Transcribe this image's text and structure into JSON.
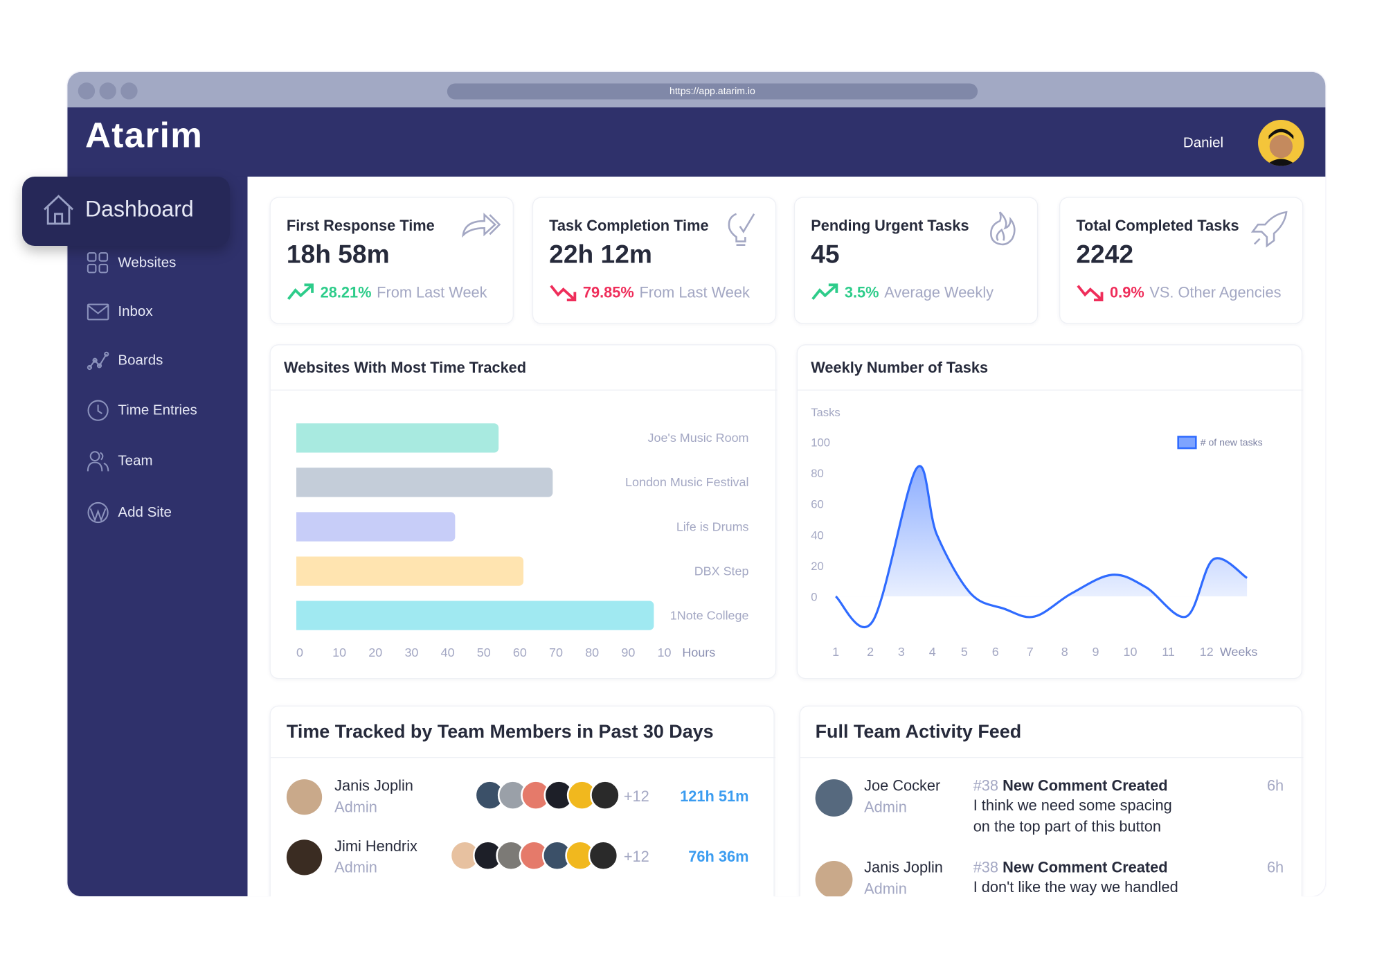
{
  "browser": {
    "url": "https://app.atarim.io"
  },
  "header": {
    "logo": "Atarim",
    "user_name": "Daniel"
  },
  "sidebar": {
    "active": "Dashboard",
    "items": [
      {
        "label": "Websites",
        "icon": "grid-icon"
      },
      {
        "label": "Inbox",
        "icon": "mail-icon"
      },
      {
        "label": "Boards",
        "icon": "graph-icon"
      },
      {
        "label": "Time Entries",
        "icon": "clock-icon"
      },
      {
        "label": "Team",
        "icon": "users-icon"
      },
      {
        "label": "Add Site",
        "icon": "wordpress-icon"
      }
    ]
  },
  "kpis": [
    {
      "title": "First Response Time",
      "value": "18h 58m",
      "delta": "28.21%",
      "trend": "up",
      "note": "From Last Week",
      "icon": "forward-arrow-icon"
    },
    {
      "title": "Task Completion Time",
      "value": "22h 12m",
      "delta": "79.85%",
      "trend": "down",
      "note": "From Last Week",
      "icon": "lightbulb-check-icon"
    },
    {
      "title": "Pending Urgent Tasks",
      "value": "45",
      "delta": "3.5%",
      "trend": "up",
      "note": "Average Weekly",
      "icon": "flame-icon"
    },
    {
      "title": "Total Completed Tasks",
      "value": "2242",
      "delta": "0.9%",
      "trend": "down",
      "note": "VS. Other Agencies",
      "icon": "rocket-icon"
    }
  ],
  "colors": {
    "up": "#2dcc8a",
    "down": "#ef2d5a",
    "sidebar": "#2f316b",
    "accent": "#2f6bff"
  },
  "chart_data": [
    {
      "type": "bar",
      "title": "Websites With Most Time Tracked",
      "orientation": "horizontal",
      "categories": [
        "Joe's Music Room",
        "London Music Festival",
        "Life is Drums",
        "DBX Step",
        "1Note College"
      ],
      "values": [
        55,
        70,
        43,
        62,
        98
      ],
      "colors": [
        "#a8eae0",
        "#c4cdd9",
        "#c7cdf8",
        "#ffe4b0",
        "#a0e9f1"
      ],
      "xlim": [
        0,
        100
      ],
      "xticks": [
        "0",
        "10",
        "20",
        "30",
        "40",
        "50",
        "60",
        "70",
        "80",
        "90",
        "10"
      ],
      "xlabel": "Hours"
    },
    {
      "type": "area",
      "title": "Weekly Number of Tasks",
      "ylabel": "Tasks",
      "xlabel": "Weeks",
      "ylim": [
        0,
        100
      ],
      "yticks": [
        "100",
        "80",
        "60",
        "40",
        "20",
        "0"
      ],
      "xticks": [
        "1",
        "2",
        "3",
        "4",
        "5",
        "6",
        "7",
        "8",
        "9",
        "10",
        "11",
        "12"
      ],
      "legend": "top-right",
      "series": [
        {
          "name": "# of new tasks",
          "color": "#2f6bff",
          "points": [
            [
              1,
              0
            ],
            [
              2.1,
              -16
            ],
            [
              3.4,
              83
            ],
            [
              4,
              40
            ],
            [
              5,
              2
            ],
            [
              6,
              -8
            ],
            [
              6.9,
              -13
            ],
            [
              8,
              2
            ],
            [
              9.2,
              14
            ],
            [
              10.2,
              6
            ],
            [
              11.4,
              -13
            ],
            [
              12.2,
              24
            ],
            [
              13.2,
              12
            ]
          ]
        }
      ]
    }
  ],
  "team_time": {
    "title": "Time Tracked by Team Members in Past 30 Days",
    "rows": [
      {
        "name": "Janis Joplin",
        "role": "Admin",
        "extra": "+12",
        "time": "121h 51m",
        "avatar": "#c9a98a",
        "group": [
          "#3b5068",
          "#9aa0a8",
          "#e57a6a",
          "#1d1f28",
          "#f1b81e",
          "#2a2a2a"
        ]
      },
      {
        "name": "Jimi Hendrix",
        "role": "Admin",
        "extra": "+12",
        "time": "76h 36m",
        "avatar": "#3a2c22",
        "group": [
          "#e7c1a0",
          "#1d1f28",
          "#7c7a76",
          "#e57a6a",
          "#3b5068",
          "#f1b81e",
          "#2a2a2a"
        ]
      }
    ]
  },
  "activity": {
    "title": "Full Team Activity Feed",
    "items": [
      {
        "name": "Joe Cocker",
        "role": "Admin",
        "ref": "#38",
        "action": "New Comment Created",
        "text": "I think we need some spacing on the top part of this button",
        "time": "6h",
        "avatar": "#56697e"
      },
      {
        "name": "Janis Joplin",
        "role": "Admin",
        "ref": "#38",
        "action": "New Comment Created",
        "text": "I don't like the way we handled",
        "time": "6h",
        "avatar": "#c9a98a"
      }
    ]
  }
}
